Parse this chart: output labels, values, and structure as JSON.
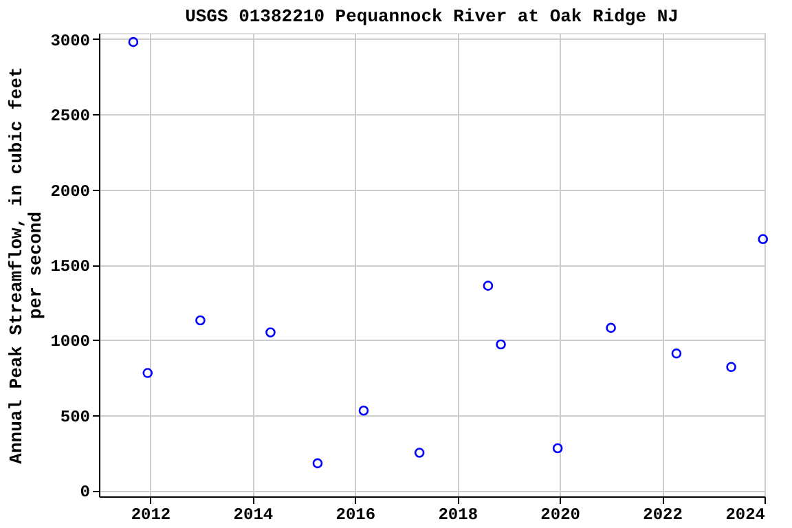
{
  "chart_data": {
    "type": "scatter",
    "title": "USGS 01382210 Pequannock River at Oak Ridge NJ",
    "ylabel": "Annual Peak Streamflow, in cubic feet per second",
    "x": [
      2011.67,
      2011.95,
      2012.98,
      2014.35,
      2015.27,
      2016.17,
      2017.26,
      2018.6,
      2018.85,
      2019.96,
      2021.0,
      2022.28,
      2023.35,
      2023.97
    ],
    "series": [
      {
        "color": "#0000ff",
        "values": [
          2980,
          780,
          1130,
          1050,
          180,
          530,
          250,
          1360,
          970,
          280,
          1080,
          910,
          820,
          1670
        ]
      }
    ],
    "xlim": [
      2011,
      2024
    ],
    "xticks": [
      2012,
      2014,
      2016,
      2018,
      2020,
      2022,
      2024
    ],
    "ylim": [
      -40,
      3040
    ],
    "yticks": [
      0,
      500,
      1000,
      1500,
      2000,
      2500,
      3000
    ],
    "grid": true,
    "marker": "circle"
  }
}
